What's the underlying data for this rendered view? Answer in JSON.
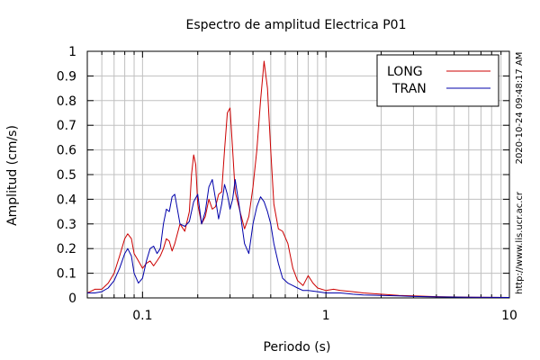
{
  "chart_data": {
    "type": "line",
    "title": "Espectro de amplitud Electrica P01",
    "xlabel": "Periodo (s)",
    "ylabel": "Amplitud (cm/s)",
    "xscale": "log",
    "xlim": [
      0.05,
      10
    ],
    "ylim": [
      0,
      1
    ],
    "grid": true,
    "legend_position": "top-right",
    "x_ticks": [
      {
        "value": 0.1,
        "label": "0.1"
      },
      {
        "value": 1,
        "label": "1"
      },
      {
        "value": 10,
        "label": "10"
      }
    ],
    "y_ticks": [
      {
        "value": 0,
        "label": "0"
      },
      {
        "value": 0.1,
        "label": "0.1"
      },
      {
        "value": 0.2,
        "label": "0.2"
      },
      {
        "value": 0.3,
        "label": "0.3"
      },
      {
        "value": 0.4,
        "label": "0.4"
      },
      {
        "value": 0.5,
        "label": "0.5"
      },
      {
        "value": 0.6,
        "label": "0.6"
      },
      {
        "value": 0.7,
        "label": "0.7"
      },
      {
        "value": 0.8,
        "label": "0.8"
      },
      {
        "value": 0.9,
        "label": "0.9"
      },
      {
        "value": 1,
        "label": "1"
      }
    ],
    "annotations": [
      "2020-10-24 09:48:17 AM",
      "http://www.lis.ucr.ac.cr"
    ],
    "series": [
      {
        "name": "LONG",
        "color": "#cc0000",
        "points": [
          [
            0.05,
            0.02
          ],
          [
            0.055,
            0.035
          ],
          [
            0.06,
            0.035
          ],
          [
            0.065,
            0.06
          ],
          [
            0.07,
            0.1
          ],
          [
            0.075,
            0.17
          ],
          [
            0.08,
            0.24
          ],
          [
            0.083,
            0.26
          ],
          [
            0.087,
            0.24
          ],
          [
            0.09,
            0.18
          ],
          [
            0.095,
            0.15
          ],
          [
            0.1,
            0.12
          ],
          [
            0.105,
            0.14
          ],
          [
            0.11,
            0.15
          ],
          [
            0.115,
            0.13
          ],
          [
            0.12,
            0.15
          ],
          [
            0.125,
            0.17
          ],
          [
            0.13,
            0.2
          ],
          [
            0.135,
            0.24
          ],
          [
            0.14,
            0.23
          ],
          [
            0.145,
            0.19
          ],
          [
            0.15,
            0.22
          ],
          [
            0.16,
            0.3
          ],
          [
            0.17,
            0.27
          ],
          [
            0.18,
            0.35
          ],
          [
            0.185,
            0.5
          ],
          [
            0.19,
            0.58
          ],
          [
            0.195,
            0.54
          ],
          [
            0.2,
            0.38
          ],
          [
            0.21,
            0.3
          ],
          [
            0.22,
            0.33
          ],
          [
            0.23,
            0.4
          ],
          [
            0.24,
            0.36
          ],
          [
            0.25,
            0.37
          ],
          [
            0.26,
            0.42
          ],
          [
            0.27,
            0.43
          ],
          [
            0.28,
            0.6
          ],
          [
            0.29,
            0.75
          ],
          [
            0.3,
            0.77
          ],
          [
            0.31,
            0.6
          ],
          [
            0.32,
            0.43
          ],
          [
            0.34,
            0.35
          ],
          [
            0.36,
            0.28
          ],
          [
            0.38,
            0.33
          ],
          [
            0.4,
            0.45
          ],
          [
            0.42,
            0.6
          ],
          [
            0.44,
            0.8
          ],
          [
            0.46,
            0.96
          ],
          [
            0.48,
            0.85
          ],
          [
            0.5,
            0.6
          ],
          [
            0.52,
            0.38
          ],
          [
            0.55,
            0.28
          ],
          [
            0.58,
            0.27
          ],
          [
            0.62,
            0.22
          ],
          [
            0.66,
            0.12
          ],
          [
            0.7,
            0.07
          ],
          [
            0.75,
            0.05
          ],
          [
            0.8,
            0.09
          ],
          [
            0.85,
            0.06
          ],
          [
            0.9,
            0.04
          ],
          [
            1,
            0.03
          ],
          [
            1.1,
            0.035
          ],
          [
            1.2,
            0.03
          ],
          [
            1.4,
            0.025
          ],
          [
            1.6,
            0.02
          ],
          [
            2,
            0.015
          ],
          [
            2.5,
            0.01
          ],
          [
            3,
            0.008
          ],
          [
            4,
            0.005
          ],
          [
            6,
            0.003
          ],
          [
            10,
            0.002
          ]
        ]
      },
      {
        "name": "TRAN",
        "color": "#0000aa",
        "points": [
          [
            0.05,
            0.02
          ],
          [
            0.055,
            0.02
          ],
          [
            0.06,
            0.025
          ],
          [
            0.065,
            0.04
          ],
          [
            0.07,
            0.07
          ],
          [
            0.075,
            0.12
          ],
          [
            0.08,
            0.18
          ],
          [
            0.083,
            0.2
          ],
          [
            0.087,
            0.17
          ],
          [
            0.09,
            0.1
          ],
          [
            0.095,
            0.06
          ],
          [
            0.1,
            0.08
          ],
          [
            0.105,
            0.15
          ],
          [
            0.11,
            0.2
          ],
          [
            0.115,
            0.21
          ],
          [
            0.12,
            0.18
          ],
          [
            0.125,
            0.2
          ],
          [
            0.13,
            0.3
          ],
          [
            0.135,
            0.36
          ],
          [
            0.14,
            0.35
          ],
          [
            0.145,
            0.41
          ],
          [
            0.15,
            0.42
          ],
          [
            0.16,
            0.3
          ],
          [
            0.17,
            0.29
          ],
          [
            0.18,
            0.31
          ],
          [
            0.19,
            0.39
          ],
          [
            0.2,
            0.42
          ],
          [
            0.21,
            0.3
          ],
          [
            0.22,
            0.35
          ],
          [
            0.23,
            0.45
          ],
          [
            0.24,
            0.48
          ],
          [
            0.25,
            0.4
          ],
          [
            0.26,
            0.32
          ],
          [
            0.27,
            0.38
          ],
          [
            0.28,
            0.46
          ],
          [
            0.29,
            0.42
          ],
          [
            0.3,
            0.36
          ],
          [
            0.31,
            0.4
          ],
          [
            0.32,
            0.48
          ],
          [
            0.34,
            0.35
          ],
          [
            0.36,
            0.22
          ],
          [
            0.38,
            0.18
          ],
          [
            0.4,
            0.3
          ],
          [
            0.42,
            0.37
          ],
          [
            0.44,
            0.41
          ],
          [
            0.46,
            0.39
          ],
          [
            0.48,
            0.35
          ],
          [
            0.5,
            0.3
          ],
          [
            0.52,
            0.22
          ],
          [
            0.55,
            0.14
          ],
          [
            0.58,
            0.08
          ],
          [
            0.62,
            0.06
          ],
          [
            0.66,
            0.05
          ],
          [
            0.7,
            0.04
          ],
          [
            0.75,
            0.03
          ],
          [
            0.8,
            0.03
          ],
          [
            0.9,
            0.025
          ],
          [
            1,
            0.02
          ],
          [
            1.2,
            0.02
          ],
          [
            1.4,
            0.015
          ],
          [
            1.6,
            0.012
          ],
          [
            2,
            0.01
          ],
          [
            2.5,
            0.008
          ],
          [
            3,
            0.006
          ],
          [
            4,
            0.004
          ],
          [
            6,
            0.003
          ],
          [
            10,
            0.002
          ]
        ]
      }
    ]
  }
}
